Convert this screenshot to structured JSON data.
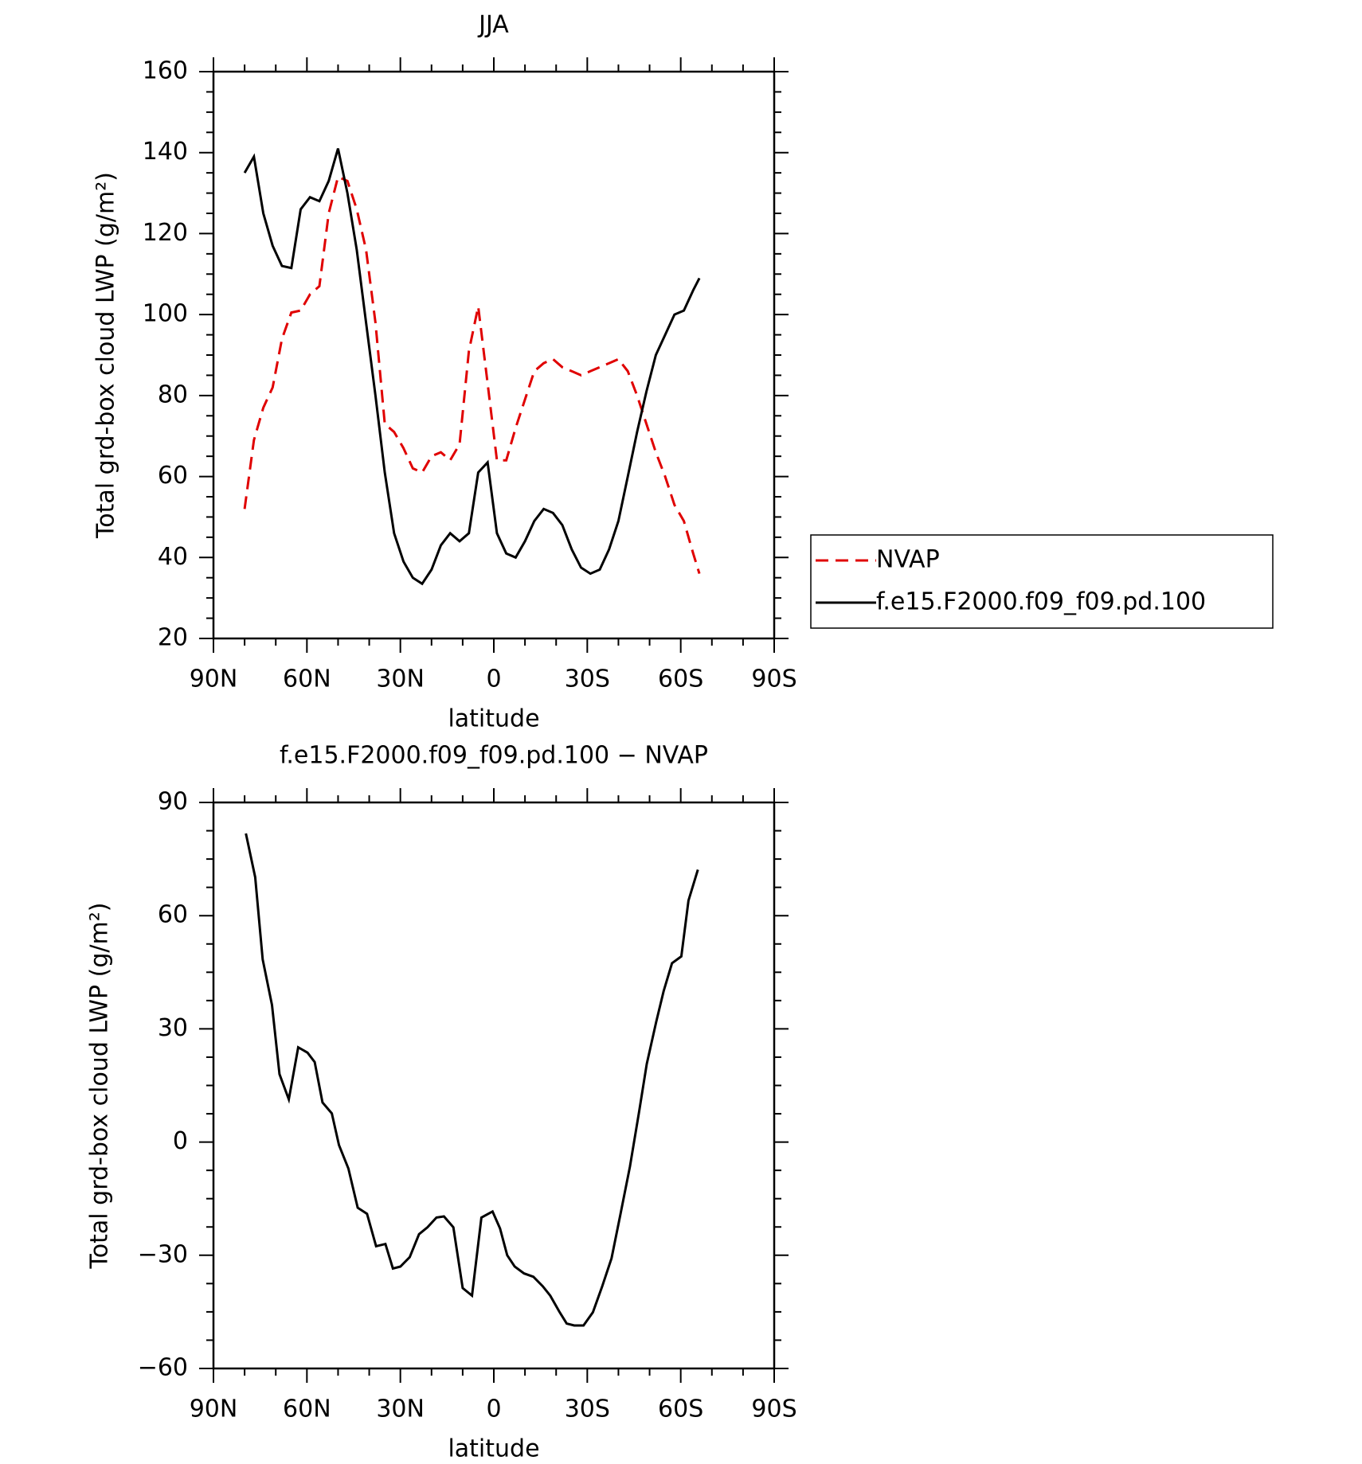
{
  "chart_data": [
    {
      "type": "line",
      "title": "JJA",
      "x_label": "latitude",
      "y_label": "Total grd-box cloud LWP (g/m²)",
      "xlim": [
        90,
        -90
      ],
      "xticks": [
        {
          "value": 90,
          "label": "90N"
        },
        {
          "value": 60,
          "label": "60N"
        },
        {
          "value": 30,
          "label": "30N"
        },
        0,
        {
          "value": -30,
          "label": "30S"
        },
        {
          "value": -60,
          "label": "60S"
        },
        {
          "value": -90,
          "label": "90S"
        }
      ],
      "ylim": [
        20,
        160
      ],
      "yticks": [
        20,
        40,
        60,
        80,
        100,
        120,
        140,
        160
      ],
      "legend": "right",
      "x": [
        80,
        77,
        74,
        71,
        68,
        65,
        62,
        59,
        56,
        53,
        50,
        47,
        44,
        41,
        38,
        35,
        32,
        29,
        26,
        23,
        20,
        17,
        14,
        11,
        8,
        5,
        2,
        -1,
        -4,
        -7,
        -10,
        -13,
        -16,
        -19,
        -22,
        -25,
        -28,
        -31,
        -34,
        -37,
        -40,
        -43,
        -46,
        -49,
        -52,
        -55,
        -58,
        -61,
        -64,
        -66
      ],
      "series": [
        {
          "name": "NVAP",
          "color": "#e00000",
          "style": "dashed",
          "values": [
            52,
            69,
            77,
            82,
            94,
            100.5,
            101,
            105,
            107,
            125,
            134,
            133,
            126,
            116,
            98,
            73,
            71,
            67,
            62,
            61,
            65,
            66,
            64,
            68,
            91,
            102,
            83,
            64,
            64,
            72,
            79,
            86,
            88,
            89,
            87,
            86,
            85,
            86,
            87,
            88,
            89,
            86,
            80,
            73,
            66,
            60,
            53,
            49,
            41,
            36
          ]
        },
        {
          "name": "f.e15.F2000.f09_f09.pd.100",
          "color": "#000000",
          "style": "solid",
          "values": [
            135,
            139,
            125,
            117,
            112,
            111.5,
            126,
            129,
            128,
            133,
            141,
            130,
            116,
            98,
            80,
            61,
            46,
            39,
            35,
            33.5,
            37,
            43,
            46,
            44,
            46,
            61,
            63.5,
            46,
            41,
            40,
            44,
            49,
            52,
            51,
            48,
            42,
            37.5,
            36,
            37,
            42,
            49,
            60,
            71,
            81,
            90,
            95,
            100,
            101,
            106,
            109
          ]
        }
      ]
    },
    {
      "type": "line",
      "title": "f.e15.F2000.f09_f09.pd.100 − NVAP",
      "x_label": "latitude",
      "y_label": "Total grd-box cloud LWP (g/m²)",
      "xlim": [
        90,
        -90
      ],
      "xticks": [
        {
          "value": 90,
          "label": "90N"
        },
        {
          "value": 60,
          "label": "60N"
        },
        {
          "value": 30,
          "label": "30N"
        },
        0,
        {
          "value": -30,
          "label": "30S"
        },
        {
          "value": -60,
          "label": "60S"
        },
        {
          "value": -90,
          "label": "90S"
        }
      ],
      "ylim": [
        -60,
        90
      ],
      "yticks": [
        {
          "value": -60,
          "label": "−60"
        },
        {
          "value": -30,
          "label": "−30"
        },
        0,
        30,
        60,
        90
      ],
      "color": "#000000",
      "x": [
        79.6,
        76.6,
        74.2,
        71.2,
        68.8,
        65.8,
        62.8,
        59.8,
        57.5,
        55,
        52,
        49.7,
        46.7,
        43.7,
        40.7,
        37.8,
        34.8,
        32.4,
        30,
        27,
        24,
        21.3,
        18.4,
        16,
        13,
        10,
        7,
        4,
        0.4,
        -2,
        -4.3,
        -6.7,
        -9.7,
        -12.7,
        -15.7,
        -18.1,
        -21,
        -23.4,
        -25.8,
        -28.8,
        -31.8,
        -34.8,
        -37.8,
        -40.7,
        -43.7,
        -46.7,
        -49.1,
        -52.1,
        -54.5,
        -57.2,
        -60.2,
        -62.5,
        -65.5
      ],
      "values": [
        81.8,
        70.2,
        48.4,
        36.3,
        18,
        11.3,
        25.1,
        23.7,
        21.2,
        10.5,
        7.6,
        -0.8,
        -7,
        -17.4,
        -19,
        -27.6,
        -27,
        -33.5,
        -33,
        -30.5,
        -24.4,
        -22.6,
        -20,
        -19.7,
        -22.6,
        -38.7,
        -40.7,
        -20,
        -18.4,
        -22.9,
        -30,
        -33,
        -34.8,
        -35.7,
        -38.2,
        -40.7,
        -44.9,
        -48.1,
        -48.6,
        -48.6,
        -45.1,
        -38.2,
        -30.8,
        -18.9,
        -6.5,
        8.3,
        20.7,
        31.8,
        40,
        47.4,
        49.2,
        64,
        72.2
      ]
    }
  ]
}
